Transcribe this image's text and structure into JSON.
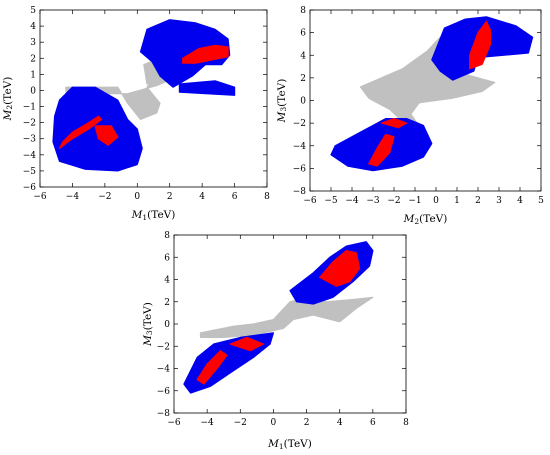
{
  "chart_data": [
    {
      "type": "scatter",
      "xlabel": "M1(TeV)",
      "ylabel": "M2(TeV)",
      "xlabel_main": "M",
      "xlabel_sub": "1",
      "xlabel_unit": "(TeV)",
      "ylabel_main": "M",
      "ylabel_sub": "2",
      "ylabel_unit": "(TeV)",
      "xlim": [
        -6,
        8
      ],
      "ylim": [
        -6,
        5
      ],
      "xticks": [
        -6,
        -4,
        -2,
        0,
        2,
        4,
        6,
        8
      ],
      "yticks": [
        -6,
        -5,
        -4,
        -3,
        -2,
        -1,
        0,
        1,
        2,
        3,
        4,
        5
      ],
      "grid": false,
      "series": [
        {
          "color": "#c0c0c0",
          "regions": [
            [
              [
                -4.4,
                0.2
              ],
              [
                -1.2,
                0.2
              ],
              [
                -0.6,
                -0.8
              ],
              [
                0.2,
                -1.8
              ],
              [
                1.2,
                -1.4
              ],
              [
                1.4,
                -0.8
              ],
              [
                0.6,
                0.2
              ],
              [
                1.2,
                1.2
              ],
              [
                2.2,
                1.6
              ],
              [
                2.6,
                0.9
              ],
              [
                1.2,
                0.3
              ],
              [
                -0.6,
                -0.2
              ],
              [
                -2,
                -0.2
              ],
              [
                -4.4,
                -0.1
              ]
            ],
            [
              [
                0.4,
                1.6
              ],
              [
                1.8,
                2.2
              ],
              [
                1.6,
                1.2
              ],
              [
                0.6,
                0.4
              ]
            ]
          ]
        },
        {
          "color": "#0000ee",
          "regions": [
            [
              [
                0.2,
                2.4
              ],
              [
                0.6,
                3.8
              ],
              [
                2,
                4.4
              ],
              [
                3.6,
                4.2
              ],
              [
                4.8,
                3.8
              ],
              [
                5.6,
                3.2
              ],
              [
                5.7,
                2.2
              ],
              [
                5.2,
                1.6
              ],
              [
                4.2,
                1.6
              ],
              [
                3.4,
                0.9
              ],
              [
                2.2,
                0.2
              ],
              [
                1.4,
                0.9
              ],
              [
                0.9,
                1.8
              ]
            ],
            [
              [
                2.6,
                0.4
              ],
              [
                4.8,
                0.6
              ],
              [
                6,
                0.2
              ],
              [
                6,
                -0.3
              ],
              [
                4.2,
                -0.2
              ],
              [
                2.6,
                -0.1
              ]
            ],
            [
              [
                -5.1,
                -1.6
              ],
              [
                -5.2,
                -3.2
              ],
              [
                -4.8,
                -4.4
              ],
              [
                -3.2,
                -4.9
              ],
              [
                -1.2,
                -5
              ],
              [
                0,
                -4.6
              ],
              [
                0.3,
                -3.6
              ],
              [
                0,
                -2.4
              ],
              [
                -0.6,
                -1.8
              ],
              [
                -1.2,
                -0.6
              ],
              [
                -2.6,
                0.2
              ],
              [
                -4,
                0.2
              ],
              [
                -4.8,
                -0.6
              ]
            ]
          ]
        },
        {
          "color": "#ff0000",
          "regions": [
            [
              [
                2.8,
                2
              ],
              [
                3.8,
                2.6
              ],
              [
                4.8,
                2.8
              ],
              [
                5.6,
                2.7
              ],
              [
                5.6,
                2.1
              ],
              [
                4.6,
                1.9
              ],
              [
                3.6,
                1.7
              ],
              [
                2.8,
                1.7
              ]
            ],
            [
              [
                -4.6,
                -3.2
              ],
              [
                -4,
                -2.6
              ],
              [
                -3,
                -2
              ],
              [
                -2.4,
                -1.6
              ],
              [
                -2.2,
                -1.8
              ],
              [
                -3,
                -2.4
              ],
              [
                -4,
                -3
              ],
              [
                -4.8,
                -3.6
              ]
            ],
            [
              [
                -2.6,
                -2.2
              ],
              [
                -1.6,
                -2.2
              ],
              [
                -1.2,
                -2.9
              ],
              [
                -1.8,
                -3.4
              ],
              [
                -2.4,
                -3
              ]
            ]
          ]
        }
      ]
    },
    {
      "type": "scatter",
      "xlabel": "M2(TeV)",
      "ylabel": "M3(TeV)",
      "xlabel_main": "M",
      "xlabel_sub": "2",
      "xlabel_unit": "(TeV)",
      "ylabel_main": "M",
      "ylabel_sub": "3",
      "ylabel_unit": "(TeV)",
      "xlim": [
        -6,
        5
      ],
      "ylim": [
        -8,
        8
      ],
      "xticks": [
        -6,
        -5,
        -4,
        -3,
        -2,
        -1,
        0,
        1,
        2,
        3,
        4,
        5
      ],
      "yticks": [
        -8,
        -6,
        -4,
        -2,
        0,
        2,
        4,
        6,
        8
      ],
      "grid": false,
      "series": [
        {
          "color": "#c0c0c0",
          "regions": [
            [
              [
                -3.6,
                1.2
              ],
              [
                -1.6,
                2.8
              ],
              [
                -0.4,
                4.4
              ],
              [
                0.2,
                5.6
              ],
              [
                0.4,
                3.4
              ],
              [
                1.6,
                2.2
              ],
              [
                2.8,
                1.6
              ],
              [
                2.2,
                0.8
              ],
              [
                0.8,
                0.2
              ],
              [
                -0.8,
                -0.2
              ],
              [
                -1.2,
                -1.2
              ],
              [
                -0.6,
                -2.8
              ],
              [
                -1.4,
                -2.2
              ],
              [
                -2.2,
                -0.8
              ],
              [
                -3.2,
                0.2
              ]
            ]
          ]
        },
        {
          "color": "#0000ee",
          "regions": [
            [
              [
                -0.2,
                3.6
              ],
              [
                0.4,
                6.4
              ],
              [
                1.4,
                7.2
              ],
              [
                2.4,
                7.4
              ],
              [
                3.8,
                6.6
              ],
              [
                4.6,
                5.6
              ],
              [
                4.4,
                4.2
              ],
              [
                3.2,
                4
              ],
              [
                2,
                3.8
              ],
              [
                1.8,
                2.6
              ],
              [
                0.8,
                1.8
              ],
              [
                0.2,
                2.6
              ]
            ],
            [
              [
                -4.8,
                -4
              ],
              [
                -3.6,
                -2.8
              ],
              [
                -2.4,
                -1.6
              ],
              [
                -1.4,
                -1.6
              ],
              [
                -0.6,
                -2.2
              ],
              [
                -0.2,
                -3.8
              ],
              [
                -0.6,
                -5
              ],
              [
                -1.6,
                -5.8
              ],
              [
                -3,
                -6.2
              ],
              [
                -4.2,
                -5.8
              ],
              [
                -5,
                -4.8
              ]
            ]
          ]
        },
        {
          "color": "#ff0000",
          "regions": [
            [
              [
                1.6,
                4
              ],
              [
                2,
                6
              ],
              [
                2.4,
                7
              ],
              [
                2.6,
                6.2
              ],
              [
                2.6,
                5
              ],
              [
                2.2,
                3.2
              ],
              [
                1.6,
                2.8
              ]
            ],
            [
              [
                -3.2,
                -5.6
              ],
              [
                -2.8,
                -4.2
              ],
              [
                -2.4,
                -3
              ],
              [
                -2,
                -3.2
              ],
              [
                -2.2,
                -4.6
              ],
              [
                -2.8,
                -5.8
              ]
            ],
            [
              [
                -2.6,
                -2
              ],
              [
                -2,
                -1.6
              ],
              [
                -1.4,
                -2
              ],
              [
                -1.8,
                -2.4
              ]
            ]
          ]
        }
      ]
    },
    {
      "type": "scatter",
      "xlabel": "M1(TeV)",
      "ylabel": "M3(TeV)",
      "xlabel_main": "M",
      "xlabel_sub": "1",
      "xlabel_unit": "(TeV)",
      "ylabel_main": "M",
      "ylabel_sub": "3",
      "ylabel_unit": "(TeV)",
      "xlim": [
        -6,
        8
      ],
      "ylim": [
        -8,
        8
      ],
      "xticks": [
        -6,
        -4,
        -2,
        0,
        2,
        4,
        6,
        8
      ],
      "yticks": [
        -8,
        -6,
        -4,
        -2,
        0,
        2,
        4,
        6,
        8
      ],
      "grid": false,
      "series": [
        {
          "color": "#c0c0c0",
          "regions": [
            [
              [
                -4.4,
                -0.8
              ],
              [
                -2.4,
                -0.2
              ],
              [
                -1.2,
                0
              ],
              [
                0,
                0.4
              ],
              [
                1,
                2
              ],
              [
                2,
                2.4
              ],
              [
                3.2,
                2
              ],
              [
                4.8,
                2.2
              ],
              [
                6,
                2.4
              ],
              [
                5,
                1.4
              ],
              [
                4,
                0.2
              ],
              [
                2.4,
                0.8
              ],
              [
                1.2,
                0.4
              ],
              [
                0.6,
                -0.4
              ],
              [
                -1.2,
                -1
              ],
              [
                -3,
                -1.2
              ],
              [
                -4.4,
                -1.2
              ]
            ]
          ]
        },
        {
          "color": "#0000ee",
          "regions": [
            [
              [
                1,
                3
              ],
              [
                2.4,
                4.6
              ],
              [
                3.4,
                6
              ],
              [
                4.4,
                7
              ],
              [
                5.6,
                7.4
              ],
              [
                6,
                6.6
              ],
              [
                5.8,
                5.2
              ],
              [
                4.8,
                3.8
              ],
              [
                3.6,
                2.4
              ],
              [
                2.4,
                1.8
              ],
              [
                1.4,
                2
              ]
            ],
            [
              [
                -5.4,
                -5.4
              ],
              [
                -4.6,
                -3
              ],
              [
                -3.6,
                -1.8
              ],
              [
                -2,
                -1.2
              ],
              [
                -1,
                -1
              ],
              [
                0,
                -0.8
              ],
              [
                -0.2,
                -1.8
              ],
              [
                -1.2,
                -3
              ],
              [
                -2.6,
                -4.4
              ],
              [
                -3.8,
                -5.6
              ],
              [
                -5,
                -6.2
              ]
            ]
          ]
        },
        {
          "color": "#ff0000",
          "regions": [
            [
              [
                2.8,
                4.2
              ],
              [
                3.6,
                5.6
              ],
              [
                4.4,
                6.6
              ],
              [
                5,
                6.4
              ],
              [
                5.2,
                5
              ],
              [
                4.6,
                3.8
              ],
              [
                3.8,
                3.4
              ]
            ],
            [
              [
                -4.6,
                -5
              ],
              [
                -4,
                -3.6
              ],
              [
                -3.2,
                -2.4
              ],
              [
                -2.8,
                -2.8
              ],
              [
                -3.4,
                -4
              ],
              [
                -4.2,
                -5.4
              ]
            ],
            [
              [
                -2.6,
                -1.8
              ],
              [
                -1.6,
                -1.2
              ],
              [
                -0.6,
                -1.8
              ],
              [
                -1.4,
                -2.4
              ]
            ]
          ]
        }
      ]
    }
  ]
}
